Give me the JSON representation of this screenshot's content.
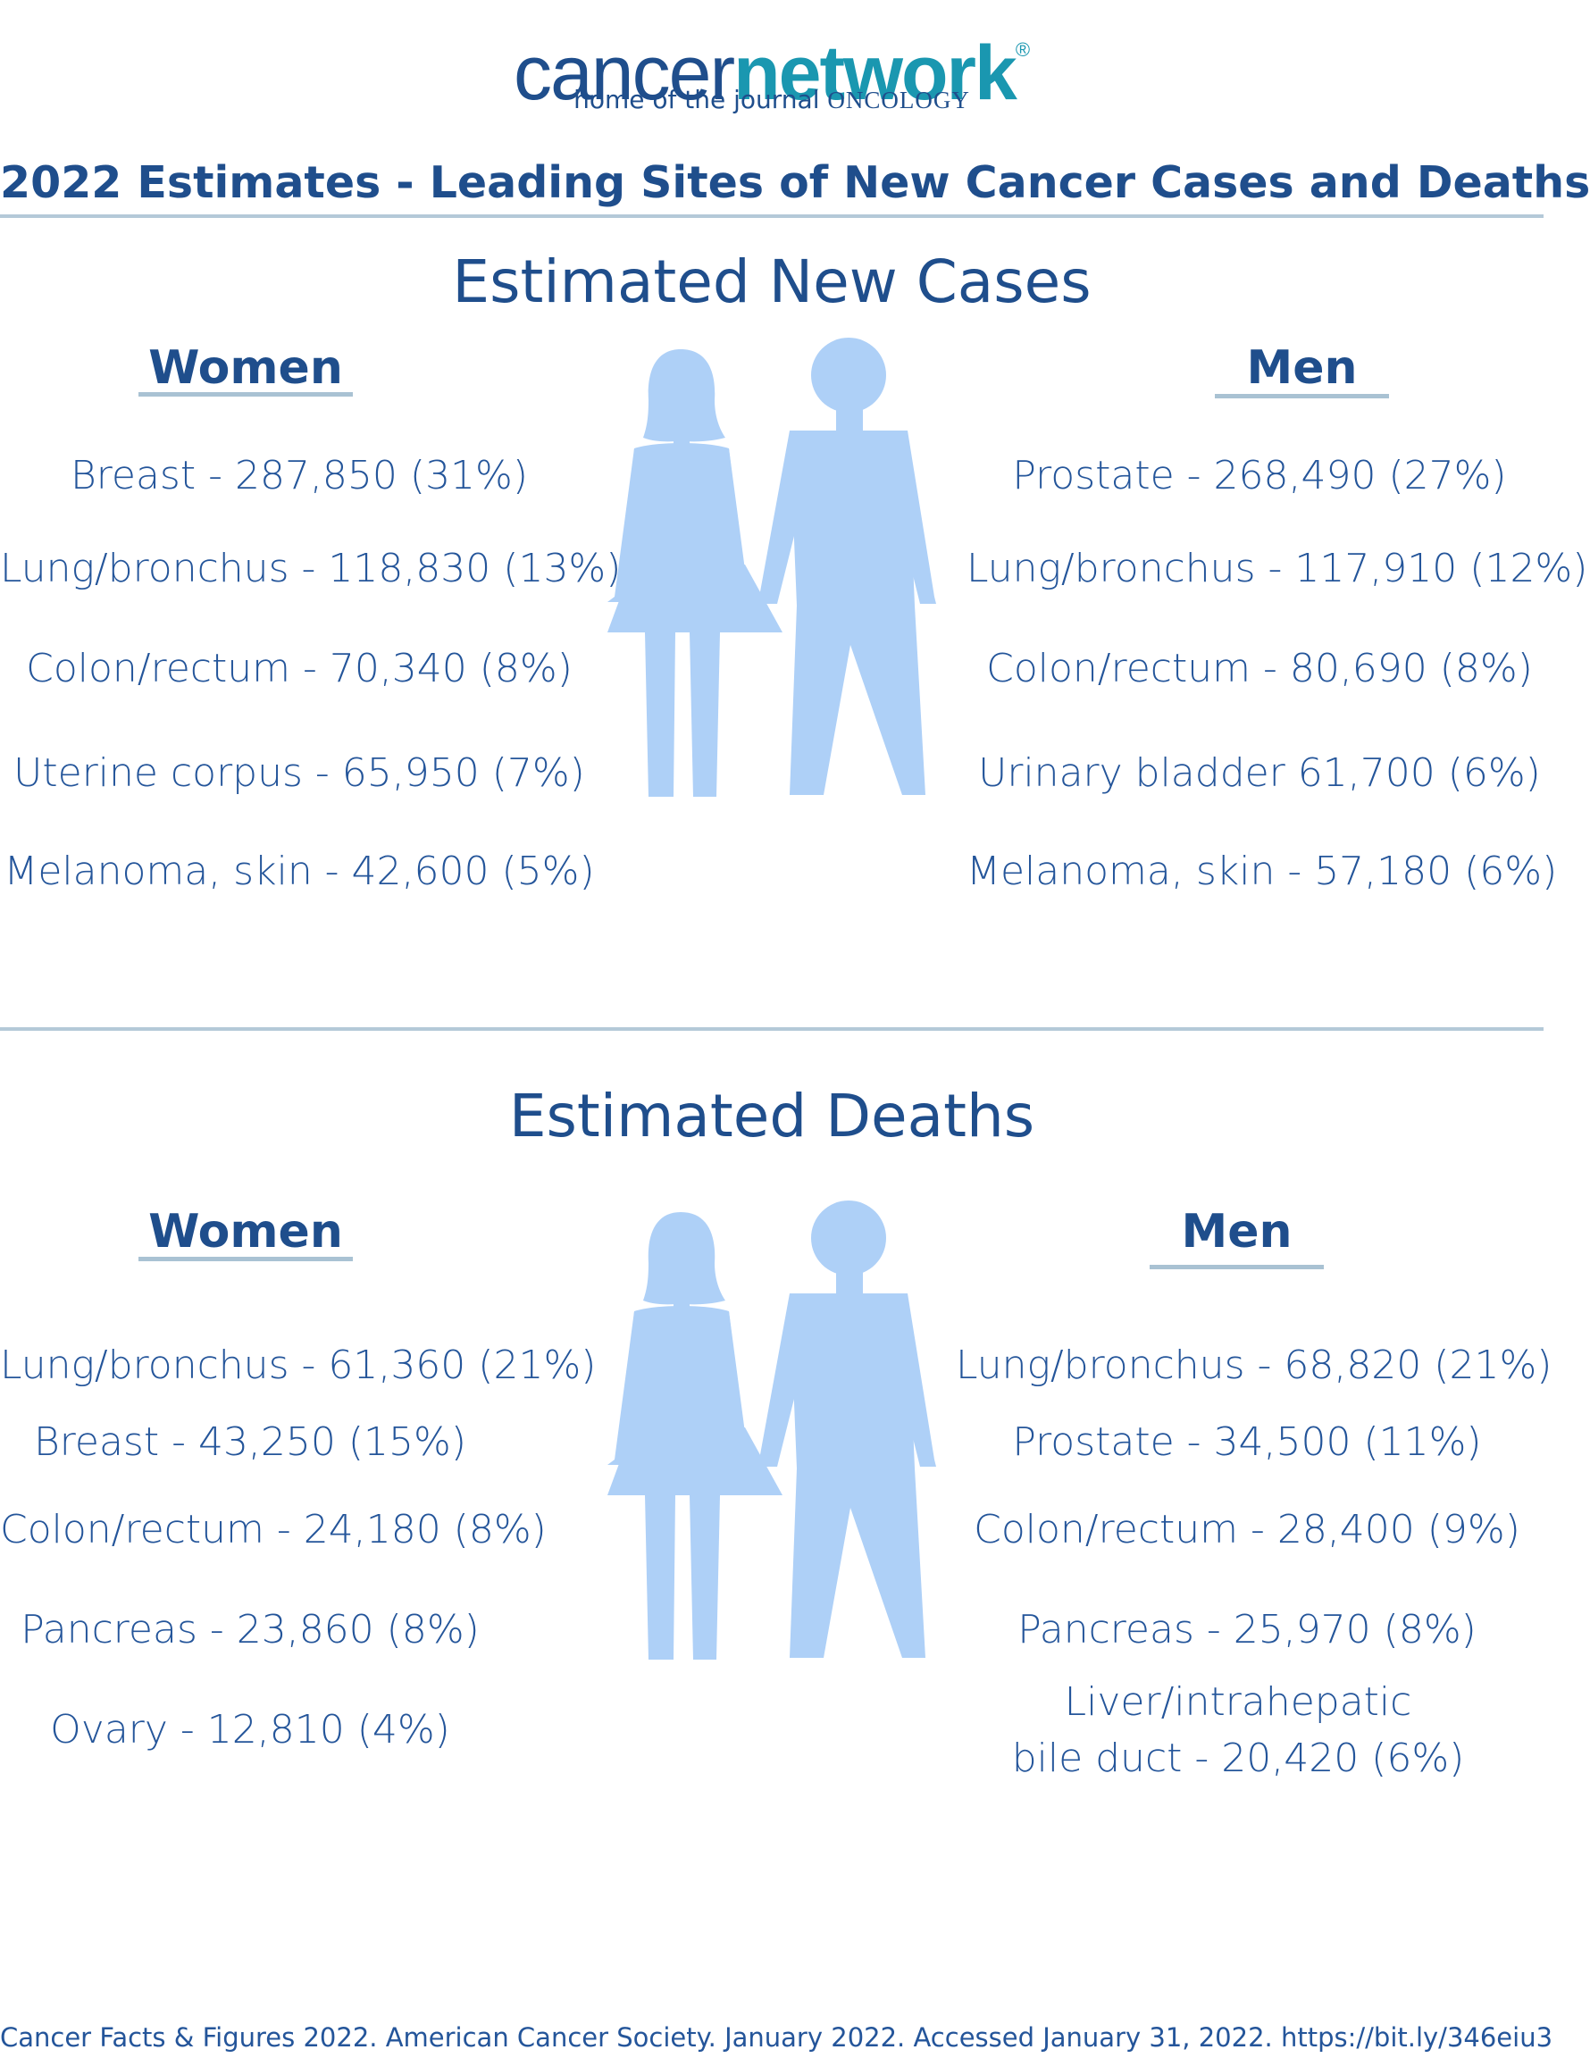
{
  "logo": {
    "brand_part1": "cancer",
    "brand_part2": "network",
    "registered_mark": "®",
    "tagline": "home of the journal",
    "tagline_journal": "ONCOLOGY"
  },
  "title": "2022 Estimates - Leading Sites of New Cancer Cases and Deaths",
  "new_cases": {
    "heading": "Estimated New Cases",
    "women": {
      "label": "Women",
      "items": [
        "Breast - 287,850 (31%)",
        "Lung/bronchus - 118,830 (13%)",
        "Colon/rectum - 70,340 (8%)",
        "Uterine corpus - 65,950 (7%)",
        "Melanoma, skin - 42,600 (5%)"
      ]
    },
    "men": {
      "label": "Men",
      "items": [
        "Prostate - 268,490 (27%)",
        "Lung/bronchus - 117,910 (12%)",
        "Colon/rectum - 80,690 (8%)",
        "Urinary bladder 61,700 (6%)",
        "Melanoma, skin - 57,180 (6%)"
      ]
    }
  },
  "deaths": {
    "heading": "Estimated Deaths",
    "women": {
      "label": "Women",
      "items": [
        "Lung/bronchus - 61,360 (21%)",
        "Breast - 43,250 (15%)",
        "Colon/rectum - 24,180 (8%)",
        "Pancreas - 23,860 (8%)",
        "Ovary - 12,810 (4%)"
      ]
    },
    "men": {
      "label": "Men",
      "items": [
        "Lung/bronchus - 68,820 (21%)",
        "Prostate - 34,500 (11%)",
        "Colon/rectum - 28,400 (9%)",
        "Pancreas - 25,970 (8%)",
        "Liver/intrahepatic",
        "bile duct - 20,420 (6%)"
      ]
    }
  },
  "icons": {
    "woman": "woman-figure-icon",
    "man": "man-figure-icon"
  },
  "colors": {
    "primary_text": "#1f4e8c",
    "brand_teal": "#1a97b0",
    "figure_fill": "#aed0f7",
    "divider": "#b4c9d8"
  },
  "citation": "Cancer Facts & Figures 2022. American Cancer Society. January 2022. Accessed January 31, 2022. https://bit.ly/346eiu3"
}
